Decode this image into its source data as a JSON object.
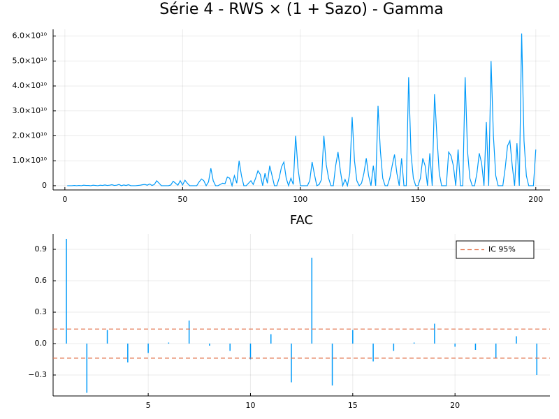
{
  "chart_data": [
    {
      "type": "line",
      "title": "Série 4 - RWS × (1 + Sazo) - Gamma",
      "color": "#009af9",
      "grid": true,
      "xlim": [
        -5,
        206
      ],
      "xticks": [
        0,
        50,
        100,
        150,
        200
      ],
      "ylim": [
        -1700000000.0,
        62700000000.0
      ],
      "yticks": [
        0,
        {
          "value": 10000000000.0,
          "label": "1.0×10¹⁰"
        },
        {
          "value": 20000000000.0,
          "label": "2.0×10¹⁰"
        },
        {
          "value": 30000000000.0,
          "label": "3.0×10¹⁰"
        },
        {
          "value": 40000000000.0,
          "label": "4.0×10¹⁰"
        },
        {
          "value": 50000000000.0,
          "label": "5.0×10¹⁰"
        },
        {
          "value": 60000000000.0,
          "label": "6.0×10¹⁰"
        }
      ],
      "x": [
        1,
        2,
        3,
        4,
        5,
        6,
        7,
        8,
        9,
        10,
        11,
        12,
        13,
        14,
        15,
        16,
        17,
        18,
        19,
        20,
        21,
        22,
        23,
        24,
        25,
        26,
        27,
        28,
        29,
        30,
        31,
        32,
        33,
        34,
        35,
        36,
        37,
        38,
        39,
        40,
        41,
        42,
        43,
        44,
        45,
        46,
        47,
        48,
        49,
        50,
        51,
        52,
        53,
        54,
        55,
        56,
        57,
        58,
        59,
        60,
        61,
        62,
        63,
        64,
        65,
        66,
        67,
        68,
        69,
        70,
        71,
        72,
        73,
        74,
        75,
        76,
        77,
        78,
        79,
        80,
        81,
        82,
        83,
        84,
        85,
        86,
        87,
        88,
        89,
        90,
        91,
        92,
        93,
        94,
        95,
        96,
        97,
        98,
        99,
        100,
        101,
        102,
        103,
        104,
        105,
        106,
        107,
        108,
        109,
        110,
        111,
        112,
        113,
        114,
        115,
        116,
        117,
        118,
        119,
        120,
        121,
        122,
        123,
        124,
        125,
        126,
        127,
        128,
        129,
        130,
        131,
        132,
        133,
        134,
        135,
        136,
        137,
        138,
        139,
        140,
        141,
        142,
        143,
        144,
        145,
        146,
        147,
        148,
        149,
        150,
        151,
        152,
        153,
        154,
        155,
        156,
        157,
        158,
        159,
        160,
        161,
        162,
        163,
        164,
        165,
        166,
        167,
        168,
        169,
        170,
        171,
        172,
        173,
        174,
        175,
        176,
        177,
        178,
        179,
        180,
        181,
        182,
        183,
        184,
        185,
        186,
        187,
        188,
        189,
        190,
        191,
        192,
        193,
        194,
        195,
        196,
        197,
        198,
        199,
        200
      ],
      "values": [
        0,
        0,
        0,
        100000000.0,
        0,
        100000000.0,
        0,
        200000000.0,
        100000000.0,
        100000000.0,
        0,
        200000000.0,
        100000000.0,
        0,
        200000000.0,
        100000000.0,
        300000000.0,
        100000000.0,
        200000000.0,
        400000000.0,
        100000000.0,
        200000000.0,
        500000000.0,
        0,
        300000000.0,
        100000000.0,
        400000000.0,
        0,
        0,
        0,
        100000000.0,
        200000000.0,
        400000000.0,
        500000000.0,
        200000000.0,
        700000000.0,
        100000000.0,
        500000000.0,
        2000000000.0,
        1000000000.0,
        0,
        0,
        0,
        0,
        300000000.0,
        1800000000.0,
        1000000000.0,
        200000000.0,
        2000000000.0,
        300000000.0,
        2200000000.0,
        1000000000.0,
        0,
        0,
        0,
        0,
        1500000000.0,
        2700000000.0,
        2000000000.0,
        0,
        1500000000.0,
        7000000000.0,
        2000000000.0,
        0,
        0,
        500000000.0,
        1000000000.0,
        800000000.0,
        3500000000.0,
        3000000000.0,
        0,
        4000000000.0,
        1000000000.0,
        10000000000.0,
        4000000000.0,
        0,
        0,
        1000000000.0,
        2000000000.0,
        500000000.0,
        3000000000.0,
        6000000000.0,
        4500000000.0,
        0,
        5000000000.0,
        1000000000.0,
        8000000000.0,
        4000000000.0,
        0,
        0,
        3000000000.0,
        7500000000.0,
        9500000000.0,
        3000000000.0,
        0,
        3000000000.0,
        500000000.0,
        20000000000.0,
        7000000000.0,
        0,
        0,
        0,
        0,
        2000000000.0,
        9500000000.0,
        4500000000.0,
        0,
        500000000.0,
        2500000000.0,
        20000000000.0,
        8500000000.0,
        3000000000.0,
        0,
        0,
        8000000000.0,
        13500000000.0,
        6000000000.0,
        0,
        2500000000.0,
        0,
        5000000000.0,
        27500000000.0,
        10000000000.0,
        2000000000.0,
        0,
        1000000000.0,
        5000000000.0,
        11000000000.0,
        4000000000.0,
        0,
        8000000000.0,
        0,
        32000000000.0,
        14000000000.0,
        3000000000.0,
        0,
        0,
        3000000000.0,
        8000000000.0,
        12500000000.0,
        5000000000.0,
        0,
        11000000000.0,
        0,
        0,
        43500000000.0,
        13000000000.0,
        3000000000.0,
        0,
        0,
        3000000000.0,
        11000000000.0,
        8000000000.0,
        0,
        13000000000.0,
        0,
        36700000000.0,
        20000000000.0,
        5000000000.0,
        0,
        0,
        0,
        13500000000.0,
        12000000000.0,
        8000000000.0,
        0,
        14500000000.0,
        0,
        0,
        43500000000.0,
        14000000000.0,
        3000000000.0,
        0,
        0,
        5000000000.0,
        13000000000.0,
        9000000000.0,
        0,
        25500000000.0,
        0,
        50000000000.0,
        20000000000.0,
        4000000000.0,
        0,
        0,
        0,
        7000000000.0,
        16000000000.0,
        18000000000.0,
        8000000000.0,
        0,
        17000000000.0,
        0,
        61000000000.0,
        18000000000.0,
        4000000000.0,
        0,
        0,
        0,
        14500000000.0
      ]
    },
    {
      "type": "bar",
      "title": "FAC",
      "color": "#009af9",
      "grid": true,
      "legend": "top-right",
      "xlim": [
        0.35,
        24.64
      ],
      "xticks": [
        5,
        10,
        15,
        20
      ],
      "ylim": [
        -0.5,
        1.047
      ],
      "yticks": [
        {
          "value": -0.3,
          "label": "−0.3"
        },
        {
          "value": 0,
          "label": "0.0"
        },
        0.3,
        0.6,
        0.9
      ],
      "x": [
        1,
        2,
        3,
        4,
        5,
        6,
        7,
        8,
        9,
        10,
        11,
        12,
        13,
        14,
        15,
        16,
        17,
        18,
        19,
        20,
        21,
        22,
        23,
        24
      ],
      "values": [
        1.0,
        -0.47,
        0.13,
        -0.18,
        -0.09,
        0.01,
        0.22,
        -0.02,
        -0.07,
        -0.15,
        0.09,
        -0.37,
        0.82,
        -0.4,
        0.13,
        -0.17,
        -0.07,
        0.01,
        0.19,
        -0.03,
        -0.06,
        -0.14,
        0.07,
        -0.3
      ],
      "reference_lines": {
        "name": "IC 95%",
        "color": "#e26f46",
        "values": [
          0.139,
          -0.139
        ]
      }
    }
  ]
}
